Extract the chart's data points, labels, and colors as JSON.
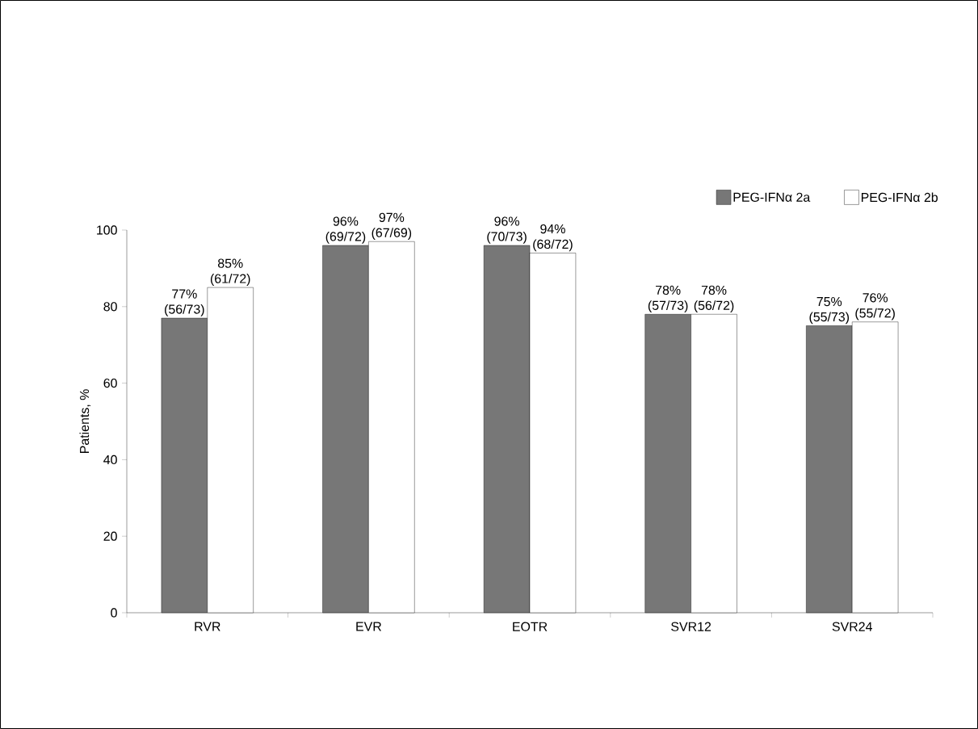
{
  "chart_data": {
    "type": "bar",
    "ylabel": "Patients, %",
    "categories": [
      "RVR",
      "EVR",
      "EOTR",
      "SVR12",
      "SVR24"
    ],
    "series": [
      {
        "name": "PEG-IFNα 2a",
        "color": "#777777",
        "values": [
          77,
          96,
          96,
          78,
          75
        ],
        "value_labels": [
          "77% (56/73)",
          "96% (69/72)",
          "96% (70/73)",
          "78% (57/73)",
          "75% (55/73)"
        ]
      },
      {
        "name": "PEG-IFNα 2b",
        "color": "#ffffff",
        "values": [
          85,
          97,
          94,
          78,
          76
        ],
        "value_labels": [
          "85% (61/72)",
          "97% (67/69)",
          "94% (68/72)",
          "78% (56/72)",
          "76% (55/72)"
        ]
      }
    ],
    "ylim": [
      0,
      100
    ],
    "yticks": [
      0,
      20,
      40,
      60,
      80,
      100
    ],
    "grid": false,
    "legend": "top right"
  }
}
